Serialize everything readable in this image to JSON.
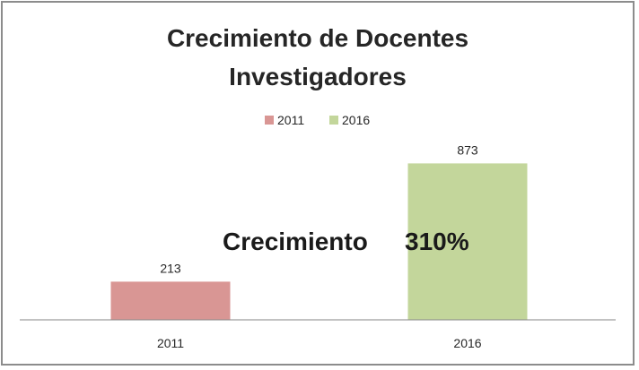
{
  "chart_data": {
    "type": "bar",
    "title_lines": [
      "Crecimiento de Docentes",
      "Investigadores"
    ],
    "categories": [
      "2011",
      "2016"
    ],
    "values": [
      213,
      873
    ],
    "data_labels": [
      "213",
      "873"
    ],
    "legend": {
      "placement": "top",
      "entries": [
        {
          "label": "2011",
          "color": "#d99694"
        },
        {
          "label": "2016",
          "color": "#c3d69b"
        }
      ]
    },
    "bar_colors": [
      "#d99694",
      "#c3d69b"
    ],
    "annotation": {
      "label": "Crecimiento",
      "value": "310%"
    },
    "grid": false,
    "ylim": [
      0,
      1000
    ]
  }
}
